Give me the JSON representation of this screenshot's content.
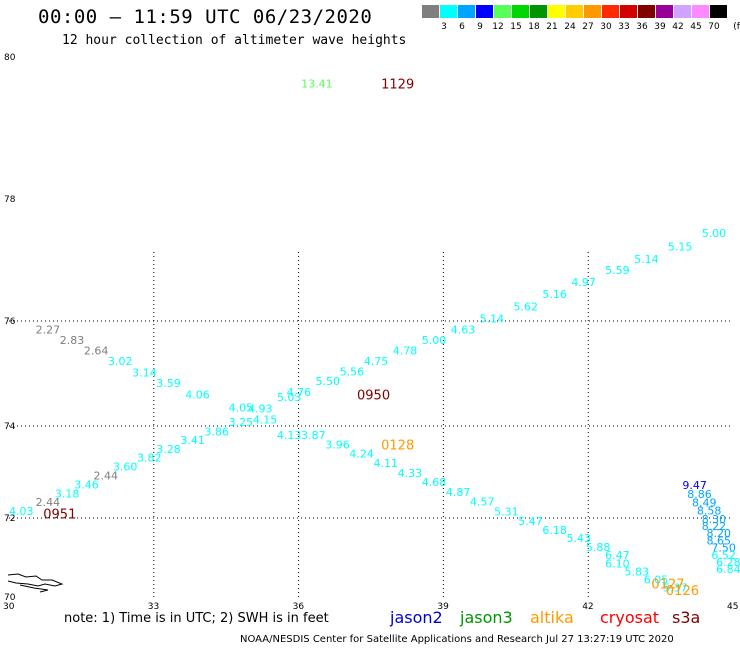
{
  "title": "00:00 – 11:59 UTC 06/23/2020",
  "subtitle": "12 hour collection of altimeter wave heights",
  "colorbar": {
    "colors": [
      "#7f7f7f",
      "#00ffff",
      "#00a5ff",
      "#0000ff",
      "#59ff59",
      "#00d600",
      "#009500",
      "#ffff00",
      "#ffcd00",
      "#ff9900",
      "#ff2a00",
      "#d20000",
      "#800000",
      "#960096",
      "#cfa3ff",
      "#ff89ff",
      "#000000"
    ],
    "labels": [
      "3",
      "6",
      "9",
      "12",
      "15",
      "18",
      "21",
      "24",
      "27",
      "30",
      "33",
      "36",
      "39",
      "42",
      "45",
      "70"
    ],
    "unit": "(ft)"
  },
  "map": {
    "lon_range": [
      30,
      45
    ],
    "lat_range": [
      70,
      80
    ],
    "x_ticks": [
      "30",
      "33",
      "36",
      "39",
      "42",
      "45"
    ],
    "y_ticks": [
      "70",
      "72",
      "74",
      "76",
      "78",
      "80"
    ],
    "x_tick_values": [
      30,
      33,
      36,
      39,
      42,
      45
    ],
    "y_tick_values": [
      70,
      72,
      74,
      76,
      78,
      80
    ]
  },
  "observations": [
    {
      "lon": 30.25,
      "lat": 72.15,
      "text": "4.03",
      "color": "#00ffff"
    },
    {
      "lon": 30.8,
      "lat": 72.35,
      "text": "2.44",
      "color": "#7f7f7f"
    },
    {
      "lon": 31.2,
      "lat": 72.53,
      "text": "3.18",
      "color": "#00ffff"
    },
    {
      "lon": 31.6,
      "lat": 72.73,
      "text": "3.46",
      "color": "#00ffff"
    },
    {
      "lon": 32.0,
      "lat": 72.92,
      "text": "2.44",
      "color": "#7f7f7f"
    },
    {
      "lon": 32.4,
      "lat": 73.12,
      "text": "3.60",
      "color": "#00ffff"
    },
    {
      "lon": 32.9,
      "lat": 73.32,
      "text": "3.82",
      "color": "#00ffff"
    },
    {
      "lon": 33.3,
      "lat": 73.5,
      "text": "3.28",
      "color": "#00ffff"
    },
    {
      "lon": 33.8,
      "lat": 73.7,
      "text": "3.41",
      "color": "#00ffff"
    },
    {
      "lon": 34.3,
      "lat": 73.88,
      "text": "3.86",
      "color": "#00ffff"
    },
    {
      "lon": 34.8,
      "lat": 74.08,
      "text": "3.25",
      "color": "#00ffff"
    },
    {
      "lon": 35.3,
      "lat": 74.12,
      "text": "4.15",
      "color": "#00ffff"
    },
    {
      "lon": 34.8,
      "lat": 74.35,
      "text": "4.05",
      "color": "#00ffff"
    },
    {
      "lon": 35.2,
      "lat": 74.33,
      "text": "4.93",
      "color": "#00ffff"
    },
    {
      "lon": 35.8,
      "lat": 74.55,
      "text": "5.03",
      "color": "#00ffff"
    },
    {
      "lon": 36.0,
      "lat": 74.65,
      "text": "4.76",
      "color": "#00ffff"
    },
    {
      "lon": 36.6,
      "lat": 74.86,
      "text": "5.50",
      "color": "#00ffff"
    },
    {
      "lon": 37.1,
      "lat": 75.04,
      "text": "5.56",
      "color": "#00ffff"
    },
    {
      "lon": 37.6,
      "lat": 75.24,
      "text": "4.75",
      "color": "#00ffff"
    },
    {
      "lon": 38.2,
      "lat": 75.44,
      "text": "4.78",
      "color": "#00ffff"
    },
    {
      "lon": 38.8,
      "lat": 75.64,
      "text": "5.00",
      "color": "#00ffff"
    },
    {
      "lon": 39.4,
      "lat": 75.84,
      "text": "4.63",
      "color": "#00ffff"
    },
    {
      "lon": 40.0,
      "lat": 76.04,
      "text": "5.14",
      "color": "#00ffff"
    },
    {
      "lon": 40.7,
      "lat": 76.24,
      "text": "5.62",
      "color": "#00ffff"
    },
    {
      "lon": 41.3,
      "lat": 76.44,
      "text": "5.16",
      "color": "#00ffff"
    },
    {
      "lon": 41.9,
      "lat": 76.64,
      "text": "4.97",
      "color": "#00ffff"
    },
    {
      "lon": 42.6,
      "lat": 76.84,
      "text": "5.59",
      "color": "#00ffff"
    },
    {
      "lon": 43.2,
      "lat": 77.02,
      "text": "5.14",
      "color": "#00ffff"
    },
    {
      "lon": 43.9,
      "lat": 77.22,
      "text": "5.15",
      "color": "#00ffff"
    },
    {
      "lon": 44.6,
      "lat": 77.44,
      "text": "5.00",
      "color": "#00ffff"
    },
    {
      "lon": 30.8,
      "lat": 75.84,
      "text": "2.27",
      "color": "#7f7f7f"
    },
    {
      "lon": 31.3,
      "lat": 75.64,
      "text": "2.83",
      "color": "#7f7f7f"
    },
    {
      "lon": 31.8,
      "lat": 75.44,
      "text": "2.64",
      "color": "#7f7f7f"
    },
    {
      "lon": 32.3,
      "lat": 75.24,
      "text": "3.02",
      "color": "#00ffff"
    },
    {
      "lon": 32.8,
      "lat": 75.02,
      "text": "3.14",
      "color": "#00ffff"
    },
    {
      "lon": 33.3,
      "lat": 74.82,
      "text": "3.59",
      "color": "#00ffff"
    },
    {
      "lon": 33.9,
      "lat": 74.6,
      "text": "4.06",
      "color": "#00ffff"
    },
    {
      "lon": 36.3,
      "lat": 73.8,
      "text": "3.87",
      "color": "#00ffff"
    },
    {
      "lon": 36.8,
      "lat": 73.6,
      "text": "3.96",
      "color": "#00ffff"
    },
    {
      "lon": 37.3,
      "lat": 73.4,
      "text": "4.24",
      "color": "#00ffff"
    },
    {
      "lon": 37.8,
      "lat": 73.2,
      "text": "4.11",
      "color": "#00ffff"
    },
    {
      "lon": 38.3,
      "lat": 72.98,
      "text": "4.33",
      "color": "#00ffff"
    },
    {
      "lon": 38.8,
      "lat": 72.78,
      "text": "4.68",
      "color": "#00ffff"
    },
    {
      "lon": 39.3,
      "lat": 72.56,
      "text": "4.87",
      "color": "#00ffff"
    },
    {
      "lon": 39.8,
      "lat": 72.36,
      "text": "4.57",
      "color": "#00ffff"
    },
    {
      "lon": 40.3,
      "lat": 72.14,
      "text": "5.31",
      "color": "#00ffff"
    },
    {
      "lon": 40.8,
      "lat": 71.92,
      "text": "5.47",
      "color": "#00ffff"
    },
    {
      "lon": 41.3,
      "lat": 71.7,
      "text": "6.18",
      "color": "#00ffff"
    },
    {
      "lon": 41.8,
      "lat": 71.5,
      "text": "5.43",
      "color": "#00ffff"
    },
    {
      "lon": 42.2,
      "lat": 71.28,
      "text": "5.88",
      "color": "#00ffff"
    },
    {
      "lon": 42.6,
      "lat": 71.08,
      "text": "6.47",
      "color": "#00ffff"
    },
    {
      "lon": 42.6,
      "lat": 70.86,
      "text": "6.10",
      "color": "#00ffff"
    },
    {
      "lon": 43.0,
      "lat": 70.66,
      "text": "5.83",
      "color": "#00ffff"
    },
    {
      "lon": 43.4,
      "lat": 70.46,
      "text": "6.05",
      "color": "#00ffff"
    },
    {
      "lon": 43.8,
      "lat": 70.26,
      "text": "5.37",
      "color": "#00ffff"
    },
    {
      "lon": 35.8,
      "lat": 73.8,
      "text": "4.13",
      "color": "#00ffff"
    },
    {
      "lon": 44.2,
      "lat": 72.72,
      "text": "9.47",
      "color": "#0000ff"
    },
    {
      "lon": 44.3,
      "lat": 72.52,
      "text": "8.86",
      "color": "#00a5ff"
    },
    {
      "lon": 44.4,
      "lat": 72.34,
      "text": "8.49",
      "color": "#00a5ff"
    },
    {
      "lon": 44.5,
      "lat": 72.16,
      "text": "8.58",
      "color": "#00a5ff"
    },
    {
      "lon": 44.6,
      "lat": 71.98,
      "text": "8.30",
      "color": "#00a5ff"
    },
    {
      "lon": 44.6,
      "lat": 71.8,
      "text": "8.22",
      "color": "#00a5ff"
    },
    {
      "lon": 44.7,
      "lat": 71.62,
      "text": "8.20",
      "color": "#00a5ff"
    },
    {
      "lon": 44.7,
      "lat": 71.44,
      "text": "8.65",
      "color": "#00a5ff"
    },
    {
      "lon": 44.8,
      "lat": 71.26,
      "text": "7.50",
      "color": "#00a5ff"
    },
    {
      "lon": 44.8,
      "lat": 71.08,
      "text": "6.52",
      "color": "#00ffff"
    },
    {
      "lon": 44.9,
      "lat": 70.9,
      "text": "6.28",
      "color": "#00ffff"
    },
    {
      "lon": 44.9,
      "lat": 70.72,
      "text": "6.84",
      "color": "#00ffff"
    },
    {
      "lon": 36.3,
      "lat": 79.63,
      "text": "13.41",
      "color": "#59ff59"
    }
  ],
  "time_labels": [
    {
      "lon": 31.0,
      "lat": 72.1,
      "text": "0951",
      "color": "#800000"
    },
    {
      "lon": 37.5,
      "lat": 74.6,
      "text": "0950",
      "color": "#800000"
    },
    {
      "lon": 38.0,
      "lat": 73.6,
      "text": "0128",
      "color": "#ff9900"
    },
    {
      "lon": 38.0,
      "lat": 79.63,
      "text": "1129",
      "color": "#800000"
    },
    {
      "lon": 43.6,
      "lat": 70.36,
      "text": "0127",
      "color": "#ff9900"
    },
    {
      "lon": 43.9,
      "lat": 70.2,
      "text": "0126",
      "color": "#ff9900"
    }
  ],
  "footer": {
    "note": "note:  1) Time is in UTC; 2) SWH is in feet",
    "satellites": [
      {
        "name": "jason2",
        "color": "#0000cc"
      },
      {
        "name": "jason3",
        "color": "#009500"
      },
      {
        "name": "altika",
        "color": "#ff9900"
      },
      {
        "name": "cryosat",
        "color": "#ff0000"
      },
      {
        "name": "s3a",
        "color": "#800000"
      }
    ],
    "credit": "NOAA/NESDIS Center for Satellite Applications and Research   Jul 27 13:27:19 UTC 2020"
  }
}
